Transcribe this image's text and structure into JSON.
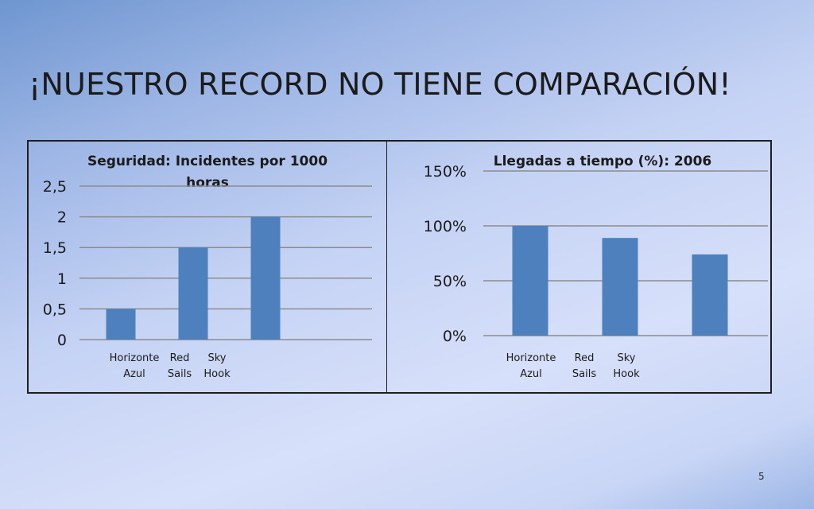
{
  "slide": {
    "title": "¡NUESTRO RECORD NO TIENE COMPARACIÓN!",
    "page_number": "5"
  },
  "colors": {
    "bar": "#4e80bd",
    "grid": "#8c8c8c",
    "text": "#1b1b1b"
  },
  "chart_data": [
    {
      "type": "bar",
      "title": [
        "Seguridad: Incidentes por 1000",
        "horas"
      ],
      "categories": [
        [
          "Horizonte",
          "Azul"
        ],
        [
          "Red",
          "Sails"
        ],
        [
          "Sky",
          "Hook"
        ]
      ],
      "values": [
        0.5,
        1.5,
        2
      ],
      "ylim": [
        0,
        2.5
      ],
      "yticks": [
        "0",
        "0,5",
        "1",
        "1,5",
        "2",
        "2,5"
      ],
      "xlabel": "",
      "ylabel": "",
      "grid": true,
      "legend": "none"
    },
    {
      "type": "bar",
      "title": [
        "Llegadas a tiempo (%): 2006"
      ],
      "categories": [
        [
          "Horizonte",
          "Azul"
        ],
        [
          "Red",
          "Sails"
        ],
        [
          "Sky",
          "Hook"
        ]
      ],
      "values": [
        100,
        89,
        74
      ],
      "ylim": [
        0,
        150
      ],
      "yticks": [
        "0%",
        "50%",
        "100%",
        "150%"
      ],
      "xlabel": "",
      "ylabel": "",
      "grid": true,
      "legend": "none"
    }
  ]
}
